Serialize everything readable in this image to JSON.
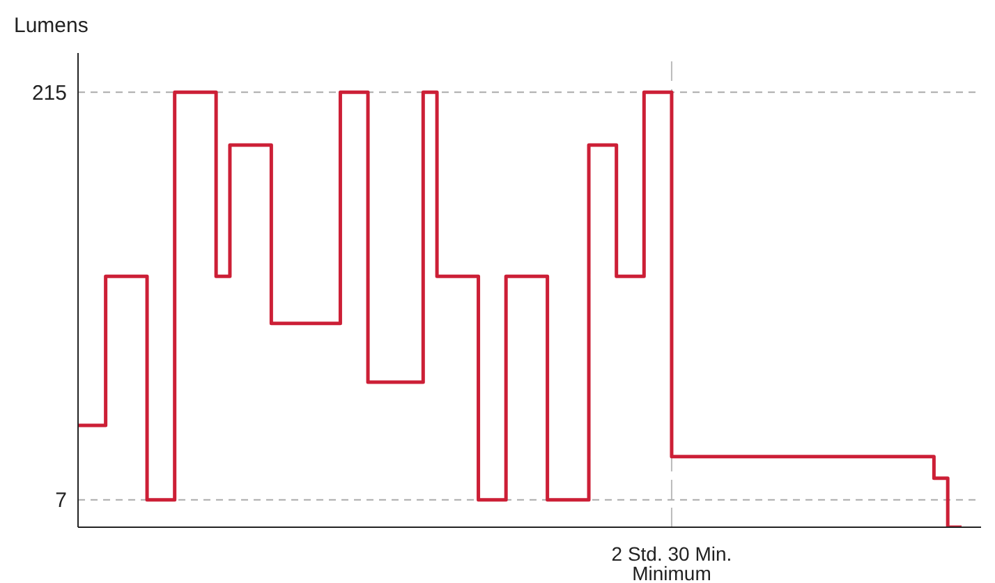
{
  "chart_data": {
    "type": "step",
    "ylabel": "Lumens",
    "categories": [
      null,
      null,
      null,
      null,
      null,
      null,
      null,
      null,
      null,
      null,
      null,
      null,
      null,
      null,
      null,
      null,
      null,
      null,
      null,
      null,
      null,
      null,
      null,
      null,
      null,
      null,
      null,
      null,
      null,
      null,
      null,
      null,
      null,
      null,
      null,
      null,
      null,
      null,
      null,
      null,
      null,
      null,
      null,
      "2 Std. 30 Min. Minimum",
      null,
      null,
      null,
      null,
      null,
      null,
      null,
      null,
      null,
      null,
      null,
      null,
      null,
      null,
      null,
      null,
      null,
      null,
      null,
      null,
      null
    ],
    "ylim": [
      -7,
      235
    ],
    "yticks": [
      7,
      215
    ],
    "grid": "y",
    "marker": "none",
    "ref_lines": [
      {
        "axis": "x",
        "value": "2 Std. 30 Min. Minimum",
        "color": "#bbbbbb",
        "line_style": "dashed"
      }
    ],
    "series": [
      {
        "color": "#cc1f36",
        "line_style": "solid",
        "values": [
          45,
          45,
          45,
          121,
          121,
          121,
          7,
          7,
          215,
          215,
          215,
          121,
          188,
          188,
          188,
          97,
          97,
          97,
          97,
          97,
          215,
          215,
          67,
          67,
          67,
          67,
          215,
          121,
          121,
          121,
          7,
          7,
          121,
          121,
          121,
          7,
          7,
          7,
          188,
          188,
          121,
          121,
          215,
          215,
          29,
          29,
          29,
          29,
          29,
          29,
          29,
          29,
          29,
          29,
          29,
          29,
          29,
          29,
          29,
          29,
          29,
          29,
          29,
          18,
          -7
        ]
      }
    ]
  }
}
